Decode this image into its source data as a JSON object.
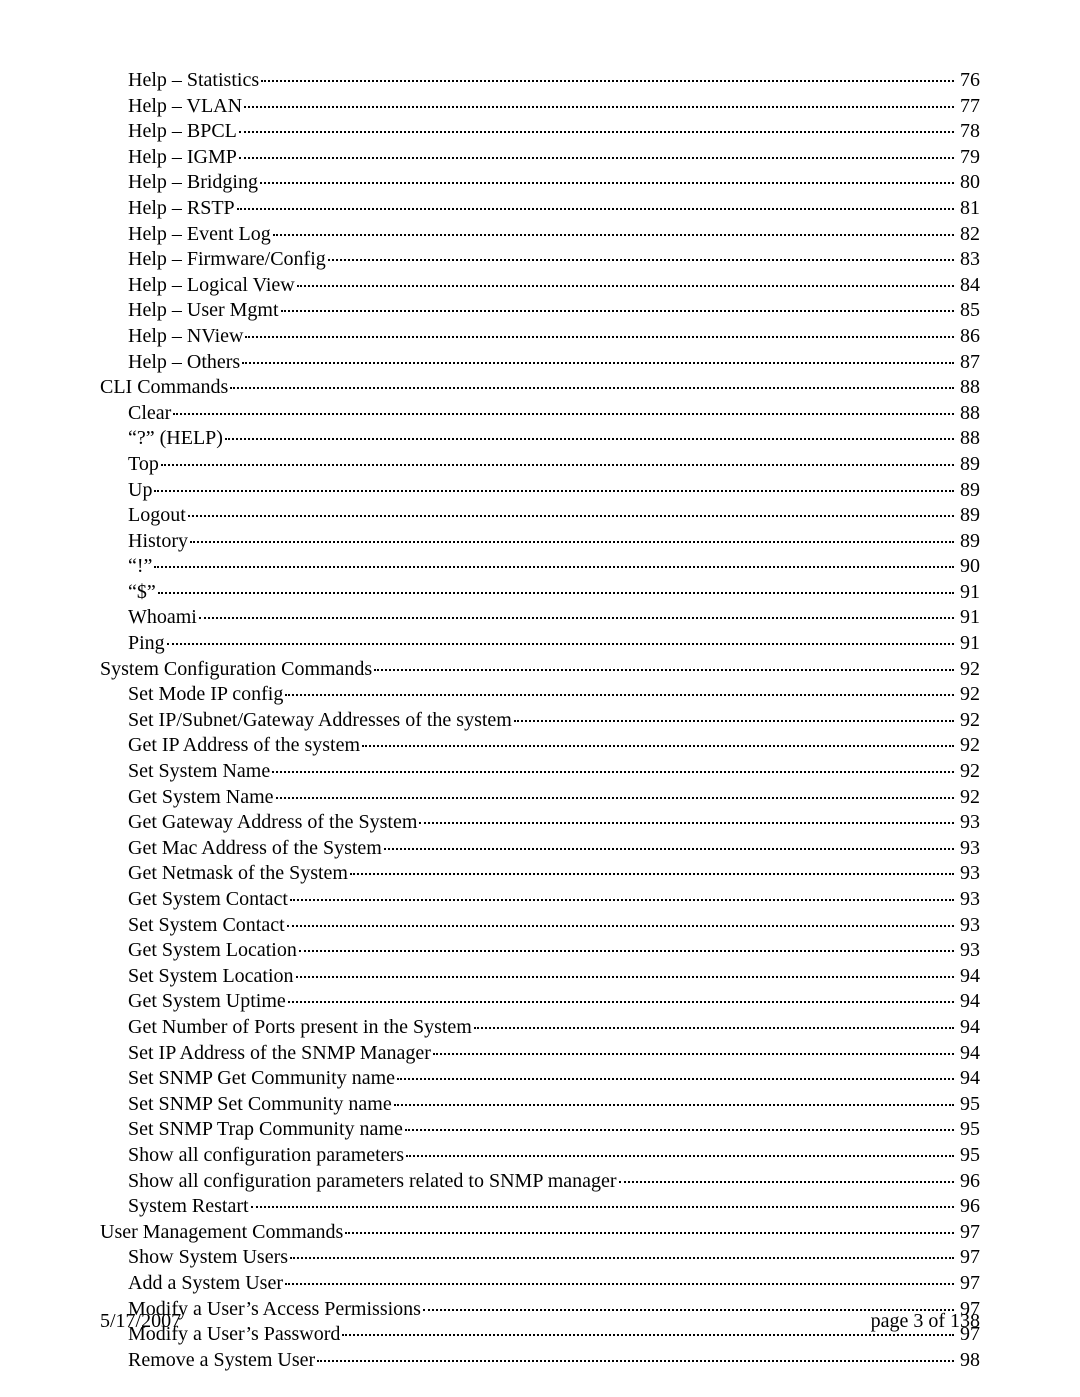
{
  "toc": [
    {
      "level": 2,
      "label": "Help – Statistics",
      "page": "76"
    },
    {
      "level": 2,
      "label": "Help – VLAN",
      "page": "77"
    },
    {
      "level": 2,
      "label": "Help – BPCL",
      "page": "78"
    },
    {
      "level": 2,
      "label": "Help – IGMP",
      "page": "79"
    },
    {
      "level": 2,
      "label": "Help – Bridging",
      "page": "80"
    },
    {
      "level": 2,
      "label": "Help – RSTP",
      "page": "81"
    },
    {
      "level": 2,
      "label": "Help – Event Log",
      "page": "82"
    },
    {
      "level": 2,
      "label": "Help – Firmware/Config",
      "page": "83"
    },
    {
      "level": 2,
      "label": "Help – Logical View",
      "page": "84"
    },
    {
      "level": 2,
      "label": "Help – User Mgmt",
      "page": "85"
    },
    {
      "level": 2,
      "label": "Help – NView",
      "page": "86"
    },
    {
      "level": 2,
      "label": "Help – Others",
      "page": "87"
    },
    {
      "level": 1,
      "label": "CLI Commands",
      "page": "88"
    },
    {
      "level": 2,
      "label": "Clear",
      "page": "88"
    },
    {
      "level": 2,
      "label": "“?” (HELP)",
      "page": "88"
    },
    {
      "level": 2,
      "label": "Top",
      "page": "89"
    },
    {
      "level": 2,
      "label": "Up",
      "page": "89"
    },
    {
      "level": 2,
      "label": "Logout",
      "page": "89"
    },
    {
      "level": 2,
      "label": "History",
      "page": "89"
    },
    {
      "level": 2,
      "label": "“!”",
      "page": "90"
    },
    {
      "level": 2,
      "label": "“$”",
      "page": "91"
    },
    {
      "level": 2,
      "label": "Whoami",
      "page": "91"
    },
    {
      "level": 2,
      "label": "Ping",
      "page": "91"
    },
    {
      "level": 1,
      "label": "System Configuration Commands",
      "page": "92"
    },
    {
      "level": 2,
      "label": "Set Mode IP config",
      "page": "92"
    },
    {
      "level": 2,
      "label": "Set IP/Subnet/Gateway Addresses of the system",
      "page": "92"
    },
    {
      "level": 2,
      "label": "Get IP Address of the system",
      "page": "92"
    },
    {
      "level": 2,
      "label": "Set System Name",
      "page": "92"
    },
    {
      "level": 2,
      "label": "Get System Name",
      "page": "92"
    },
    {
      "level": 2,
      "label": "Get Gateway Address of the System",
      "page": "93"
    },
    {
      "level": 2,
      "label": "Get Mac Address of the System",
      "page": "93"
    },
    {
      "level": 2,
      "label": "Get Netmask of the System",
      "page": "93"
    },
    {
      "level": 2,
      "label": "Get System Contact",
      "page": "93"
    },
    {
      "level": 2,
      "label": "Set System Contact",
      "page": "93"
    },
    {
      "level": 2,
      "label": "Get System Location",
      "page": "93"
    },
    {
      "level": 2,
      "label": "Set System Location",
      "page": "94"
    },
    {
      "level": 2,
      "label": "Get System Uptime",
      "page": "94"
    },
    {
      "level": 2,
      "label": "Get Number of Ports present in the System",
      "page": "94"
    },
    {
      "level": 2,
      "label": "Set IP Address of the SNMP Manager",
      "page": "94"
    },
    {
      "level": 2,
      "label": "Set SNMP Get Community name",
      "page": "94"
    },
    {
      "level": 2,
      "label": "Set SNMP Set Community name",
      "page": "95"
    },
    {
      "level": 2,
      "label": "Set SNMP Trap Community name",
      "page": "95"
    },
    {
      "level": 2,
      "label": "Show all configuration parameters",
      "page": "95"
    },
    {
      "level": 2,
      "label": "Show all configuration parameters related to SNMP manager",
      "page": "96"
    },
    {
      "level": 2,
      "label": "System Restart",
      "page": "96"
    },
    {
      "level": 1,
      "label": "User Management Commands",
      "page": "97"
    },
    {
      "level": 2,
      "label": "Show System Users",
      "page": "97"
    },
    {
      "level": 2,
      "label": "Add a System User",
      "page": "97"
    },
    {
      "level": 2,
      "label": "Modify a User’s Access Permissions",
      "page": "97"
    },
    {
      "level": 2,
      "label": "Modify a User’s Password",
      "page": "97"
    },
    {
      "level": 2,
      "label": "Remove a System User",
      "page": "98"
    }
  ],
  "footer": {
    "date": "5/17/2007",
    "page": "page 3 of 138"
  }
}
